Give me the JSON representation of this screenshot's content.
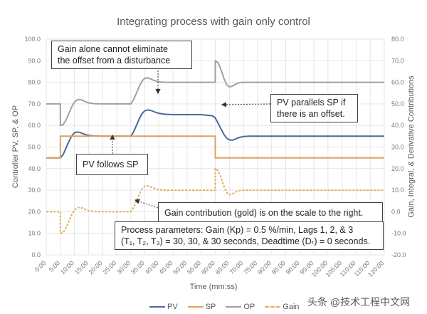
{
  "chart_data": {
    "type": "line",
    "title": "Integrating process with gain only control",
    "xlabel": "Time (mm:ss)",
    "ylabel": "Controller PV, SP, & OP",
    "y2label": "Gain, Integral, & Derivative Contributions",
    "xlim": [
      0,
      120
    ],
    "ylim": [
      0,
      100
    ],
    "y2lim": [
      -20,
      80
    ],
    "grid": true,
    "legend_position": "bottom",
    "x_ticks": [
      "0:00",
      "5:00",
      "10:00",
      "15:00",
      "20:00",
      "25:00",
      "30:00",
      "35:00",
      "40:00",
      "45:00",
      "50:00",
      "55:00",
      "60:00",
      "65:00",
      "70:00",
      "75:00",
      "80:00",
      "85:00",
      "90:00",
      "95:00",
      "100:00",
      "105:00",
      "110:00",
      "115:00",
      "120:00"
    ],
    "y_ticks": [
      "0.0",
      "10.0",
      "20.0",
      "30.0",
      "40.0",
      "50.0",
      "60.0",
      "70.0",
      "80.0",
      "90.0",
      "100.0"
    ],
    "y2_ticks": [
      "-20.0",
      "-10.0",
      "0.0",
      "10.0",
      "20.0",
      "30.0",
      "40.0",
      "50.0",
      "60.0",
      "70.0",
      "80.0"
    ],
    "series": [
      {
        "name": "PV",
        "axis": "left",
        "color": "#4a6a9a",
        "style": "solid",
        "x": [
          0,
          5,
          6,
          7,
          8,
          9,
          10,
          11,
          12,
          13,
          14,
          15,
          17,
          20,
          25,
          30,
          31,
          32,
          33,
          34,
          35,
          36,
          37,
          38,
          39,
          40,
          42,
          45,
          50,
          55,
          59,
          60,
          61,
          62,
          63,
          64,
          65,
          66,
          67,
          68,
          69,
          70,
          72,
          75,
          80,
          90,
          100,
          110,
          120
        ],
        "y": [
          45,
          45,
          46.5,
          49.5,
          52.5,
          55,
          56.6,
          57,
          56.7,
          56.2,
          55.7,
          55.4,
          55.1,
          55,
          55,
          55,
          57,
          60,
          63,
          65.5,
          66.8,
          67.2,
          67,
          66.5,
          66,
          65.6,
          65.2,
          65,
          65,
          65,
          64.5,
          63.5,
          61,
          58.5,
          56,
          54.2,
          53.3,
          53.2,
          53.6,
          54.2,
          54.6,
          54.9,
          55,
          55,
          55,
          55,
          55,
          55,
          55
        ]
      },
      {
        "name": "SP",
        "axis": "left",
        "color": "#e0a060",
        "style": "solid",
        "x": [
          0,
          5,
          5,
          60,
          60,
          120
        ],
        "y": [
          45,
          45,
          55,
          55,
          45,
          45
        ]
      },
      {
        "name": "OP",
        "axis": "left",
        "color": "#a0a0a0",
        "style": "solid",
        "x": [
          0,
          5,
          5,
          6,
          7,
          8,
          9,
          10,
          11,
          12,
          13,
          14,
          15,
          17,
          20,
          25,
          30,
          31,
          32,
          33,
          34,
          35,
          36,
          37,
          38,
          39,
          40,
          42,
          45,
          50,
          55,
          60,
          60,
          61,
          62,
          63,
          64,
          65,
          66,
          67,
          68,
          69,
          70,
          72,
          75,
          80,
          90,
          100,
          110,
          120
        ],
        "y": [
          70,
          70,
          60,
          60.4,
          62.5,
          65.5,
          68.5,
          70.8,
          71.9,
          72,
          71.6,
          71,
          70.5,
          70.1,
          70,
          70,
          70,
          72,
          75,
          78,
          80.6,
          81.9,
          82,
          81.6,
          81,
          80.5,
          80.2,
          80,
          80,
          80,
          80,
          80,
          90,
          89,
          86,
          82,
          79,
          77.9,
          78.2,
          79,
          79.6,
          79.9,
          80,
          80,
          80,
          80,
          80,
          80,
          80,
          80
        ]
      },
      {
        "name": "Gain",
        "axis": "right",
        "color": "#e0b060",
        "style": "dashed",
        "x": [
          0,
          5,
          5,
          6,
          7,
          8,
          9,
          10,
          11,
          12,
          13,
          14,
          15,
          17,
          20,
          25,
          30,
          31,
          32,
          33,
          34,
          35,
          36,
          37,
          38,
          39,
          40,
          42,
          45,
          50,
          55,
          60,
          60,
          61,
          62,
          63,
          64,
          65,
          66,
          67,
          68,
          69,
          70,
          72,
          75,
          80,
          90,
          100,
          110,
          120
        ],
        "y": [
          0,
          0,
          -10,
          -9.6,
          -7.5,
          -4.5,
          -1.5,
          0.8,
          1.9,
          2,
          1.6,
          1,
          0.5,
          0.1,
          0,
          0,
          0,
          2,
          5,
          8,
          10.6,
          11.9,
          12,
          11.6,
          11,
          10.5,
          10.2,
          10,
          10,
          10,
          10,
          10,
          20,
          19,
          16,
          12,
          9,
          7.9,
          8.2,
          9,
          9.6,
          9.9,
          10,
          10,
          10,
          10,
          10,
          10,
          10,
          10
        ]
      }
    ],
    "annotations": [
      {
        "text": "Gain alone cannot eliminate the offset from a disturbance",
        "target_x": 40,
        "target_y": 65
      },
      {
        "text": "PV parallels SP if there is an offset.",
        "target_x": 61,
        "target_y": 61
      },
      {
        "text": "PV follows SP",
        "target_x": 23,
        "target_y": 55
      },
      {
        "text": "Gain contribution (gold) is on the scale to the right.",
        "target_x": 30,
        "target_y_right": 5
      },
      {
        "text": "Process parameters: Gain (Kp) = 0.5 %/min, Lags 1, 2, & 3 (T₁, T₂, T₃) = 30, 30, & 30 seconds, Deadtime (Dₜ) = 0 seconds."
      }
    ]
  },
  "labels": {
    "title": "Integrating process with gain only control",
    "xlabel": "Time (mm:ss)",
    "ylabel": "Controller PV, SP, & OP",
    "y2label": "Gain, Integral, & Derivative Contributions",
    "note1_line1": "Gain alone cannot eliminate",
    "note1_line2": "the offset from a disturbance",
    "note2_line1": "PV parallels SP if",
    "note2_line2": "there is an offset.",
    "note3": "PV follows SP",
    "note4": "Gain contribution (gold) is on the scale to the right.",
    "note5_line1": "Process parameters:  Gain (Kp) = 0.5 %/min, Lags 1, 2, & 3",
    "note5_line2": "(T₁, T₂, T₃) = 30, 30, & 30 seconds, Deadtime (Dₜ) = 0 seconds.",
    "legend": {
      "pv": "PV",
      "sp": "SP",
      "op": "OP",
      "gain": "Gain"
    },
    "watermark": "头条 @技术工程中文网"
  }
}
